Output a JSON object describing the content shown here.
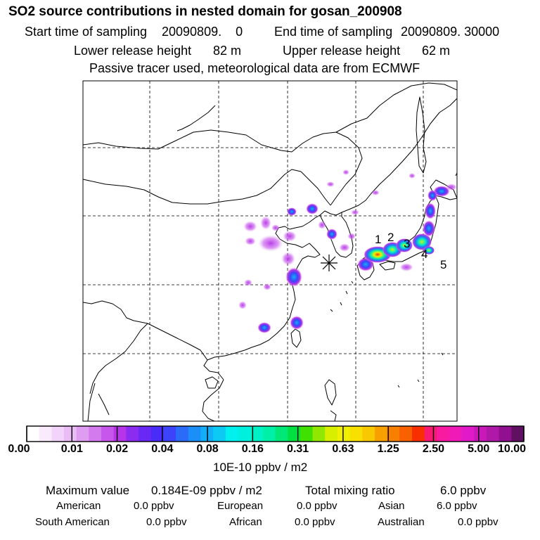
{
  "header": {
    "title": "SO2 source contributions in nested domain for gosan_200908",
    "sampling_start_label": "Start time of sampling",
    "sampling_start_value": "20090809.    0",
    "sampling_end_label": "End time of sampling",
    "sampling_end_value": "20090809. 30000",
    "lower_release_label": "Lower release height",
    "lower_release_value": "82 m",
    "upper_release_label": "Upper release height",
    "upper_release_value": "62 m",
    "note": "Passive tracer used, meteorological data are from ECMWF"
  },
  "map": {
    "receptor_marker": "asterisk-icon",
    "source_labels": [
      "1",
      "2",
      "3",
      "4",
      "5"
    ]
  },
  "colorbar": {
    "ticks": [
      "0.00",
      "0.01",
      "0.02",
      "0.04",
      "0.08",
      "0.16",
      "0.31",
      "0.63",
      "1.25",
      "2.50",
      "5.00",
      "10.00"
    ],
    "unit": "10E-10 ppbv / m2",
    "colors": [
      "#ffffff",
      "#f9eafc",
      "#f2d3f9",
      "#eabcf5",
      "#df9df2",
      "#d47aef",
      "#c656ec",
      "#b734e8",
      "#8c2cf0",
      "#6a28f5",
      "#4a2cf8",
      "#3b44f8",
      "#2a6cf8",
      "#1c8ef8",
      "#12aef8",
      "#0ccaf4",
      "#00f0f0",
      "#00f0e0",
      "#00f0c8",
      "#00f0a8",
      "#00e878",
      "#00e040",
      "#40e000",
      "#90e800",
      "#d8f000",
      "#f0f000",
      "#f8e000",
      "#f8c800",
      "#f8a000",
      "#f88000",
      "#f86000",
      "#f83000",
      "#f81a70",
      "#f81aa0",
      "#f01ab8",
      "#e01ac8",
      "#c818b8",
      "#b018a8",
      "#901090",
      "#601060"
    ]
  },
  "summary": {
    "max_label": "Maximum value",
    "max_value": "0.184E-09 ppbv / m2",
    "total_label": "Total mixing ratio",
    "total_value": "6.0 ppbv",
    "regions": [
      {
        "name": "American",
        "value": "0.0 ppbv"
      },
      {
        "name": "European",
        "value": "0.0 ppbv"
      },
      {
        "name": "Asian",
        "value": "6.0 ppbv"
      },
      {
        "name": "South American",
        "value": "0.0 ppbv"
      },
      {
        "name": "African",
        "value": "0.0 ppbv"
      },
      {
        "name": "Australian",
        "value": "0.0 ppbv"
      }
    ]
  }
}
